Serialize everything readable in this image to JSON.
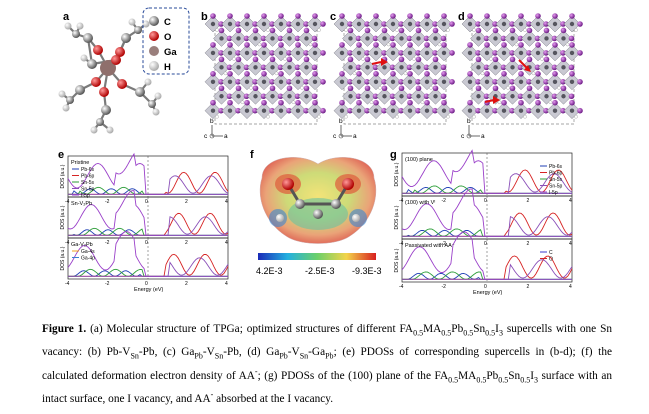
{
  "panel_labels": {
    "a": "a",
    "b": "b",
    "c": "c",
    "d": "d",
    "e": "e",
    "f": "f",
    "g": "g"
  },
  "legend_a": {
    "items": [
      {
        "label": "C",
        "color": "#6b6b6b"
      },
      {
        "label": "O",
        "color": "#e41414"
      },
      {
        "label": "Ga",
        "color": "#9a7f7c"
      },
      {
        "label": "H",
        "color": "#e6e6e6"
      }
    ]
  },
  "axes_bcd": {
    "b": "b",
    "c": "c",
    "a": "a"
  },
  "panel_e": {
    "ylabel": "DOS (a.u.)",
    "xlabel": "Energy (eV)",
    "ticks": [
      "-4",
      "-2",
      "0",
      "2",
      "4"
    ],
    "sub": [
      {
        "title": "Pristine",
        "legend": [
          "Pb-6s",
          "Pb-6p",
          "Sn-5s",
          "Sn-5p",
          "I-5p"
        ]
      },
      {
        "title": "Sn-V₂Pb",
        "legend": []
      },
      {
        "title": "Ga-V₂Pb",
        "legend": [
          "Ga-4s",
          "Ga-4p"
        ]
      }
    ]
  },
  "panel_f": {
    "colorbar": [
      "4.2E-3",
      "-2.5E-3",
      "-9.3E-3"
    ]
  },
  "panel_g": {
    "ylabel": "DOS (a.u.)",
    "xlabel": "Energy (eV)",
    "ticks": [
      "-4",
      "-2",
      "0",
      "2",
      "4"
    ],
    "legend": [
      "Pb-6s",
      "Pb-6p",
      "Sn-5s",
      "Sn-5p",
      "I-5p"
    ],
    "sub": [
      {
        "title": "(100) plane",
        "legend": []
      },
      {
        "title": "(100) with Vᴵ",
        "legend": []
      },
      {
        "title": "Passivated with AA⁻",
        "legend": [
          "C",
          "O"
        ]
      }
    ]
  },
  "colors": {
    "pb6s": "#1f3fb5",
    "pb6p": "#d62424",
    "sn5s": "#2e9e3a",
    "sn5p": "#8a4fb8",
    "i5p": "#9a40c9",
    "ga4s": "#f0a020",
    "ga4p": "#3a7fd0",
    "c": "#3a3acc",
    "o": "#d62424"
  },
  "caption": {
    "lead": "Figure 1.",
    "text_html": "(a) Molecular structure of TPGa; optimized structures of different FA<sub>0.5</sub>MA<sub>0.5</sub>Pb<sub>0.5</sub>Sn<sub>0.5</sub>I<sub>3</sub> supercells with one Sn vacancy: (b) Pb-V<sub>Sn</sub>-Pb, (c) Ga<sub>Pb</sub>-V<sub>Sn</sub>-Pb, (d) Ga<sub>Pb</sub>-V<sub>Sn</sub>-Ga<sub>Pb</sub>; (e) PDOSs of corresponding supercells in (b-d); (f) the calculated deformation electron density of AA<sup>-</sup>; (g) PDOSs of the (100) plane of the FA<sub>0.5</sub>MA<sub>0.5</sub>Pb<sub>0.5</sub>Sn<sub>0.5</sub>I<sub>3</sub> surface with an intact surface, one I vacancy, and AA<sup>-</sup> absorbed at the I vacancy."
  }
}
